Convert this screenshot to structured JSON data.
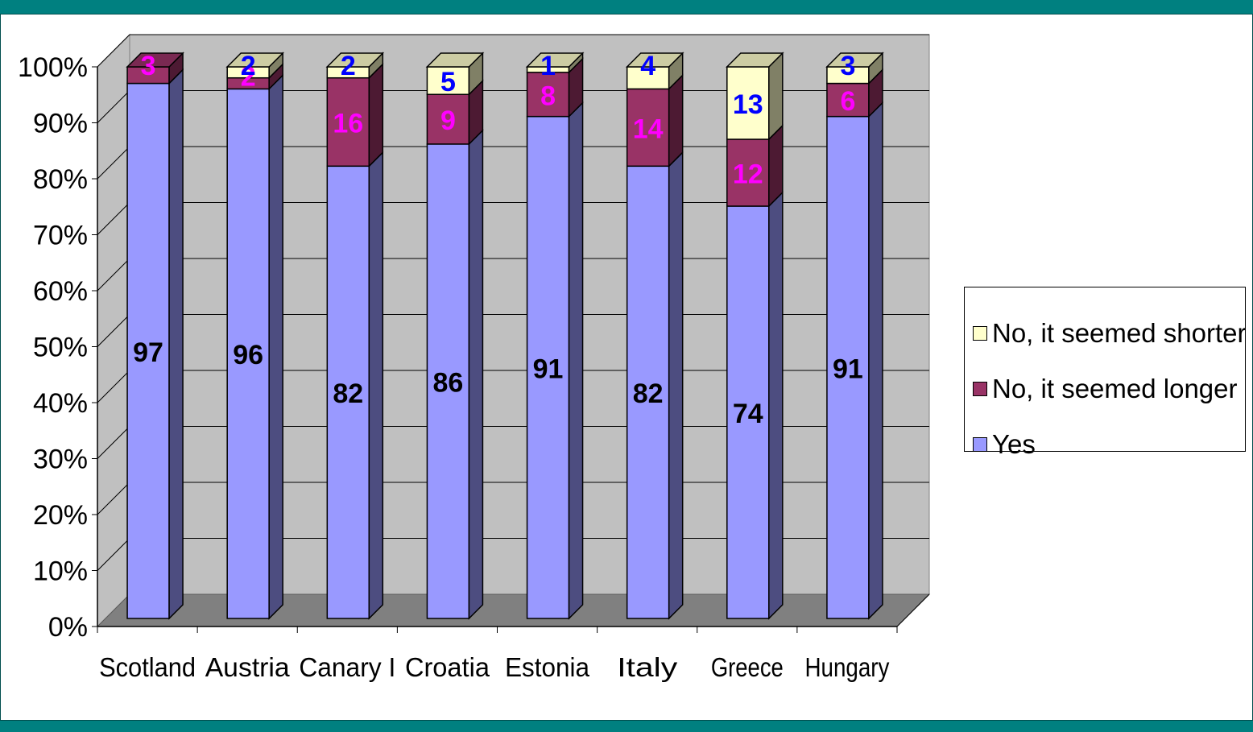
{
  "chart_data": {
    "type": "bar",
    "stacked": true,
    "percent_stacked": true,
    "three_d": true,
    "categories": [
      "Scotland",
      "Austria",
      "Canary I",
      "Croatia",
      "Estonia",
      "Italy",
      "Greece",
      "Hungary"
    ],
    "series": [
      {
        "name": "Yes",
        "values": [
          97,
          96,
          82,
          86,
          91,
          82,
          74,
          91
        ],
        "color": "#9999ff",
        "label_color": "#000000"
      },
      {
        "name": "No, it seemed longer",
        "values": [
          3,
          2,
          16,
          9,
          8,
          14,
          12,
          6
        ],
        "color": "#993366",
        "label_color": "#ff00ff"
      },
      {
        "name": "No, it seemed shorter",
        "values": [
          0,
          2,
          2,
          5,
          1,
          4,
          13,
          3
        ],
        "color": "#ffffcc",
        "label_color": "#0000ff"
      }
    ],
    "data_labels": {
      "Yes": [
        "97",
        "96",
        "82",
        "86",
        "91",
        "82",
        "74",
        "91"
      ],
      "No, it seemed longer": [
        "3",
        "2",
        "16",
        "9",
        "8",
        "14",
        "12",
        "6"
      ],
      "No, it seemed shorter": [
        "",
        "2",
        "2",
        "5",
        "1",
        "4",
        "13",
        "3"
      ]
    },
    "y_ticks": [
      "0%",
      "10%",
      "20%",
      "30%",
      "40%",
      "50%",
      "60%",
      "70%",
      "80%",
      "90%",
      "100%"
    ],
    "ylim": [
      0,
      100
    ],
    "grid": true,
    "legend_position": "right",
    "wall_color": "#c0c0c0",
    "floor_color": "#808080",
    "frame_color": "#008080"
  },
  "legend": {
    "items": [
      {
        "label": "No, it seemed shorter",
        "color": "#ffffcc"
      },
      {
        "label": "No, it seemed longer",
        "color": "#993366"
      },
      {
        "label": "Yes",
        "color": "#9999ff"
      }
    ]
  }
}
